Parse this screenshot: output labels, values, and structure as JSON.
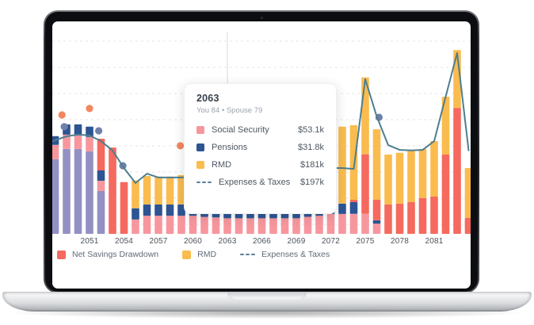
{
  "tooltip": {
    "title": "2063",
    "subtitle": "You 84 • Spouse 79",
    "anchor_year": 2063,
    "rows": [
      {
        "swatch": "square",
        "series": "social_security",
        "label": "Social Security",
        "value": "$53.1k"
      },
      {
        "swatch": "square",
        "series": "pensions",
        "label": "Pensions",
        "value": "$31.8k"
      },
      {
        "swatch": "square",
        "series": "rmd",
        "label": "RMD",
        "value": "$181k"
      },
      {
        "swatch": "dashes",
        "series": "expenses_and_taxes",
        "label": "Expenses & Taxes",
        "value": "$197k"
      }
    ]
  },
  "legend": {
    "items": [
      {
        "swatch": "square",
        "series": "net_savings_drawdown",
        "label": "Net Savings Drawdown"
      },
      {
        "swatch": "square",
        "series": "rmd",
        "label": "RMD"
      },
      {
        "swatch": "dashes",
        "series": "expenses_and_taxes",
        "label": "Expenses & Taxes"
      }
    ]
  },
  "colors": {
    "social_security": "#f8969e",
    "pensions": "#2d5493",
    "rmd": "#fabc4f",
    "net_savings_drawdown": "#f5695e",
    "unlabeled_purple": "#9390c4",
    "expenses_and_taxes": "#4d7e8f",
    "dash_icon": "#5a7d9a",
    "scatter_orange": "#f4875f",
    "scatter_blue": "#7081a9",
    "grid": "#e4e4e6",
    "hover_line": "#d5dade"
  },
  "chart_data": {
    "type": "bar",
    "subtype": "stacked bars with overlay line and scatter dots",
    "unit": "USD thousands",
    "x_tick_labels": [
      "2051",
      "2054",
      "2057",
      "2060",
      "2063",
      "2066",
      "2069",
      "2072",
      "2075",
      "2078",
      "2081"
    ],
    "x_range": [
      2047,
      2084
    ],
    "grid": "horizontal dashed",
    "legend_position": "bottom-left",
    "series_colors": {
      "social_security": "#f8969e",
      "pensions": "#2d5493",
      "rmd": "#fabc4f",
      "net_savings_drawdown": "#f5695e",
      "unlabeled_purple": "#9390c4",
      "expenses_and_taxes": "#4d7e8f"
    },
    "bars": [
      {
        "year": 2047,
        "stack": [
          [
            "unlabeled_purple",
            289
          ],
          [
            "social_security",
            43
          ],
          [
            "pensions",
            32
          ]
        ]
      },
      {
        "year": 2048,
        "stack": [
          [
            "unlabeled_purple",
            254
          ],
          [
            "social_security",
            49
          ],
          [
            "pensions",
            30
          ]
        ]
      },
      {
        "year": 2049,
        "stack": [
          [
            "unlabeled_purple",
            289
          ],
          [
            "social_security",
            49
          ],
          [
            "pensions",
            35
          ]
        ]
      },
      {
        "year": 2050,
        "stack": [
          [
            "unlabeled_purple",
            289
          ],
          [
            "social_security",
            49
          ],
          [
            "pensions",
            35
          ]
        ]
      },
      {
        "year": 2051,
        "stack": [
          [
            "unlabeled_purple",
            281
          ],
          [
            "social_security",
            49
          ],
          [
            "pensions",
            35
          ]
        ]
      },
      {
        "year": 2052,
        "stack": [
          [
            "unlabeled_purple",
            146
          ],
          [
            "social_security",
            35
          ],
          [
            "pensions",
            35
          ],
          [
            "net_savings_drawdown",
            108
          ]
        ]
      },
      {
        "year": 2053,
        "stack": [
          [
            "net_savings_drawdown",
            294
          ]
        ]
      },
      {
        "year": 2054,
        "stack": [
          [
            "net_savings_drawdown",
            176
          ]
        ]
      },
      {
        "year": 2055,
        "stack": [
          [
            "social_security",
            49
          ],
          [
            "pensions",
            38
          ],
          [
            "rmd",
            95
          ]
        ]
      },
      {
        "year": 2056,
        "stack": [
          [
            "social_security",
            62
          ],
          [
            "pensions",
            38
          ],
          [
            "rmd",
            97
          ]
        ]
      },
      {
        "year": 2057,
        "stack": [
          [
            "social_security",
            62
          ],
          [
            "pensions",
            38
          ],
          [
            "rmd",
            95
          ]
        ]
      },
      {
        "year": 2058,
        "stack": [
          [
            "social_security",
            62
          ],
          [
            "pensions",
            38
          ],
          [
            "rmd",
            95
          ]
        ]
      },
      {
        "year": 2059,
        "stack": [
          [
            "social_security",
            62
          ],
          [
            "pensions",
            38
          ],
          [
            "rmd",
            100
          ]
        ]
      },
      {
        "year": 2060,
        "stack": [
          [
            "social_security",
            62
          ],
          [
            "pensions",
            38
          ],
          [
            "rmd",
            103
          ]
        ]
      },
      {
        "year": 2061,
        "stack": [
          [
            "social_security",
            58
          ],
          [
            "pensions",
            35
          ],
          [
            "rmd",
            110
          ]
        ]
      },
      {
        "year": 2062,
        "stack": [
          [
            "social_security",
            56
          ],
          [
            "pensions",
            33
          ],
          [
            "rmd",
            120
          ]
        ]
      },
      {
        "year": 2063,
        "stack": [
          [
            "social_security",
            53.1
          ],
          [
            "pensions",
            31.8
          ],
          [
            "rmd",
            181
          ]
        ]
      },
      {
        "year": 2064,
        "stack": [
          [
            "social_security",
            53
          ],
          [
            "pensions",
            32
          ],
          [
            "rmd",
            185
          ]
        ]
      },
      {
        "year": 2065,
        "stack": [
          [
            "social_security",
            53
          ],
          [
            "pensions",
            32
          ],
          [
            "rmd",
            195
          ]
        ]
      },
      {
        "year": 2066,
        "stack": [
          [
            "social_security",
            53
          ],
          [
            "pensions",
            31
          ],
          [
            "rmd",
            205
          ]
        ]
      },
      {
        "year": 2067,
        "stack": [
          [
            "social_security",
            53
          ],
          [
            "pensions",
            31
          ],
          [
            "rmd",
            215
          ]
        ]
      },
      {
        "year": 2068,
        "stack": [
          [
            "social_security",
            53
          ],
          [
            "pensions",
            30
          ],
          [
            "rmd",
            225
          ]
        ]
      },
      {
        "year": 2069,
        "stack": [
          [
            "social_security",
            53
          ],
          [
            "pensions",
            30
          ],
          [
            "rmd",
            235
          ]
        ]
      },
      {
        "year": 2070,
        "stack": [
          [
            "social_security",
            58
          ],
          [
            "pensions",
            30
          ],
          [
            "rmd",
            245
          ]
        ]
      },
      {
        "year": 2071,
        "stack": [
          [
            "social_security",
            62
          ],
          [
            "pensions",
            32
          ],
          [
            "rmd",
            252
          ]
        ]
      },
      {
        "year": 2072,
        "stack": [
          [
            "social_security",
            68
          ],
          [
            "pensions",
            32
          ],
          [
            "rmd",
            140
          ]
        ]
      },
      {
        "year": 2073,
        "stack": [
          [
            "social_security",
            68
          ],
          [
            "pensions",
            35
          ],
          [
            "rmd",
            262
          ]
        ]
      },
      {
        "year": 2074,
        "stack": [
          [
            "social_security",
            68
          ],
          [
            "pensions",
            40
          ],
          [
            "net_savings_drawdown",
            8
          ],
          [
            "rmd",
            254
          ]
        ]
      },
      {
        "year": 2075,
        "stack": [
          [
            "social_security",
            68
          ],
          [
            "net_savings_drawdown",
            203
          ],
          [
            "rmd",
            262
          ]
        ]
      },
      {
        "year": 2076,
        "stack": [
          [
            "social_security",
            35
          ],
          [
            "pensions",
            11
          ],
          [
            "net_savings_drawdown",
            70
          ],
          [
            "rmd",
            240
          ]
        ]
      },
      {
        "year": 2077,
        "stack": [
          [
            "net_savings_drawdown",
            100
          ],
          [
            "rmd",
            170
          ]
        ]
      },
      {
        "year": 2078,
        "stack": [
          [
            "net_savings_drawdown",
            103
          ],
          [
            "rmd",
            173
          ]
        ]
      },
      {
        "year": 2079,
        "stack": [
          [
            "net_savings_drawdown",
            108
          ],
          [
            "rmd",
            176
          ]
        ]
      },
      {
        "year": 2080,
        "stack": [
          [
            "net_savings_drawdown",
            122
          ],
          [
            "rmd",
            167
          ]
        ]
      },
      {
        "year": 2081,
        "stack": [
          [
            "net_savings_drawdown",
            127
          ],
          [
            "rmd",
            189
          ]
        ]
      },
      {
        "year": 2082,
        "stack": [
          [
            "net_savings_drawdown",
            270
          ],
          [
            "rmd",
            197
          ]
        ]
      },
      {
        "year": 2083,
        "stack": [
          [
            "net_savings_drawdown",
            429
          ],
          [
            "rmd",
            197
          ]
        ]
      },
      {
        "year": 2084,
        "stack": [
          [
            "net_savings_drawdown",
            54
          ],
          [
            "rmd",
            170
          ]
        ]
      }
    ],
    "line": {
      "name": "Expenses & Taxes",
      "style": "solid teal, shown as dashed swatch in legend",
      "points": [
        [
          2047,
          302
        ],
        [
          2048,
          319
        ],
        [
          2049,
          332
        ],
        [
          2050,
          338
        ],
        [
          2051,
          335
        ],
        [
          2052,
          316
        ],
        [
          2053,
          284
        ],
        [
          2054,
          224
        ],
        [
          2055,
          173
        ],
        [
          2056,
          205
        ],
        [
          2057,
          192
        ],
        [
          2058,
          192
        ],
        [
          2059,
          192
        ],
        [
          2060,
          194
        ],
        [
          2061,
          196
        ],
        [
          2062,
          197
        ],
        [
          2063,
          197
        ],
        [
          2064,
          199
        ],
        [
          2065,
          201
        ],
        [
          2066,
          203
        ],
        [
          2067,
          205
        ],
        [
          2068,
          208
        ],
        [
          2069,
          211
        ],
        [
          2070,
          215
        ],
        [
          2071,
          219
        ],
        [
          2072,
          224
        ],
        [
          2073,
          224
        ],
        [
          2074,
          221
        ],
        [
          2075,
          527
        ],
        [
          2076,
          400
        ],
        [
          2077,
          302
        ],
        [
          2078,
          286
        ],
        [
          2079,
          284
        ],
        [
          2080,
          286
        ],
        [
          2081,
          316
        ],
        [
          2082,
          467
        ],
        [
          2083,
          616
        ],
        [
          2084,
          284
        ]
      ]
    },
    "scatter": [
      {
        "series": "orange",
        "year": 2048.6,
        "value": 405
      },
      {
        "series": "orange",
        "year": 2051.0,
        "value": 427
      },
      {
        "series": "orange",
        "year": 2058.9,
        "value": 300
      },
      {
        "series": "blue",
        "year": 2048.8,
        "value": 365
      },
      {
        "series": "blue",
        "year": 2051.8,
        "value": 351
      },
      {
        "series": "blue",
        "year": 2053.9,
        "value": 232
      },
      {
        "series": "blue",
        "year": 2076.2,
        "value": 397
      }
    ]
  }
}
